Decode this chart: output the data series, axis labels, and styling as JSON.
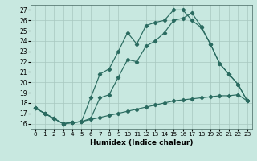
{
  "xlabel": "Humidex (Indice chaleur)",
  "bg_color": "#c8e8e0",
  "grid_color": "#a8c8c0",
  "line_color": "#2a6b60",
  "xlim": [
    -0.5,
    23.5
  ],
  "ylim": [
    15.5,
    27.5
  ],
  "xticks": [
    0,
    1,
    2,
    3,
    4,
    5,
    6,
    7,
    8,
    9,
    10,
    11,
    12,
    13,
    14,
    15,
    16,
    17,
    18,
    19,
    20,
    21,
    22,
    23
  ],
  "yticks": [
    16,
    17,
    18,
    19,
    20,
    21,
    22,
    23,
    24,
    25,
    26,
    27
  ],
  "line_bottom": [
    17.5,
    17.0,
    16.5,
    16.0,
    16.1,
    16.2,
    16.4,
    16.6,
    16.8,
    17.0,
    17.2,
    17.4,
    17.6,
    17.8,
    18.0,
    18.2,
    18.3,
    18.4,
    18.5,
    18.6,
    18.7,
    18.7,
    18.8,
    18.2
  ],
  "line_mid": [
    17.5,
    17.0,
    16.5,
    16.0,
    16.1,
    16.2,
    16.5,
    18.5,
    18.8,
    20.5,
    22.2,
    22.0,
    23.5,
    24.0,
    24.8,
    26.0,
    26.2,
    26.7,
    25.4,
    23.7,
    21.8,
    20.8,
    19.8,
    18.2
  ],
  "line_top": [
    17.5,
    17.0,
    16.5,
    16.0,
    16.1,
    16.2,
    18.5,
    20.8,
    21.3,
    23.0,
    24.8,
    23.7,
    25.5,
    25.8,
    26.0,
    27.0,
    27.0,
    26.0,
    25.3,
    23.7,
    21.8,
    20.8,
    19.8,
    18.2
  ]
}
